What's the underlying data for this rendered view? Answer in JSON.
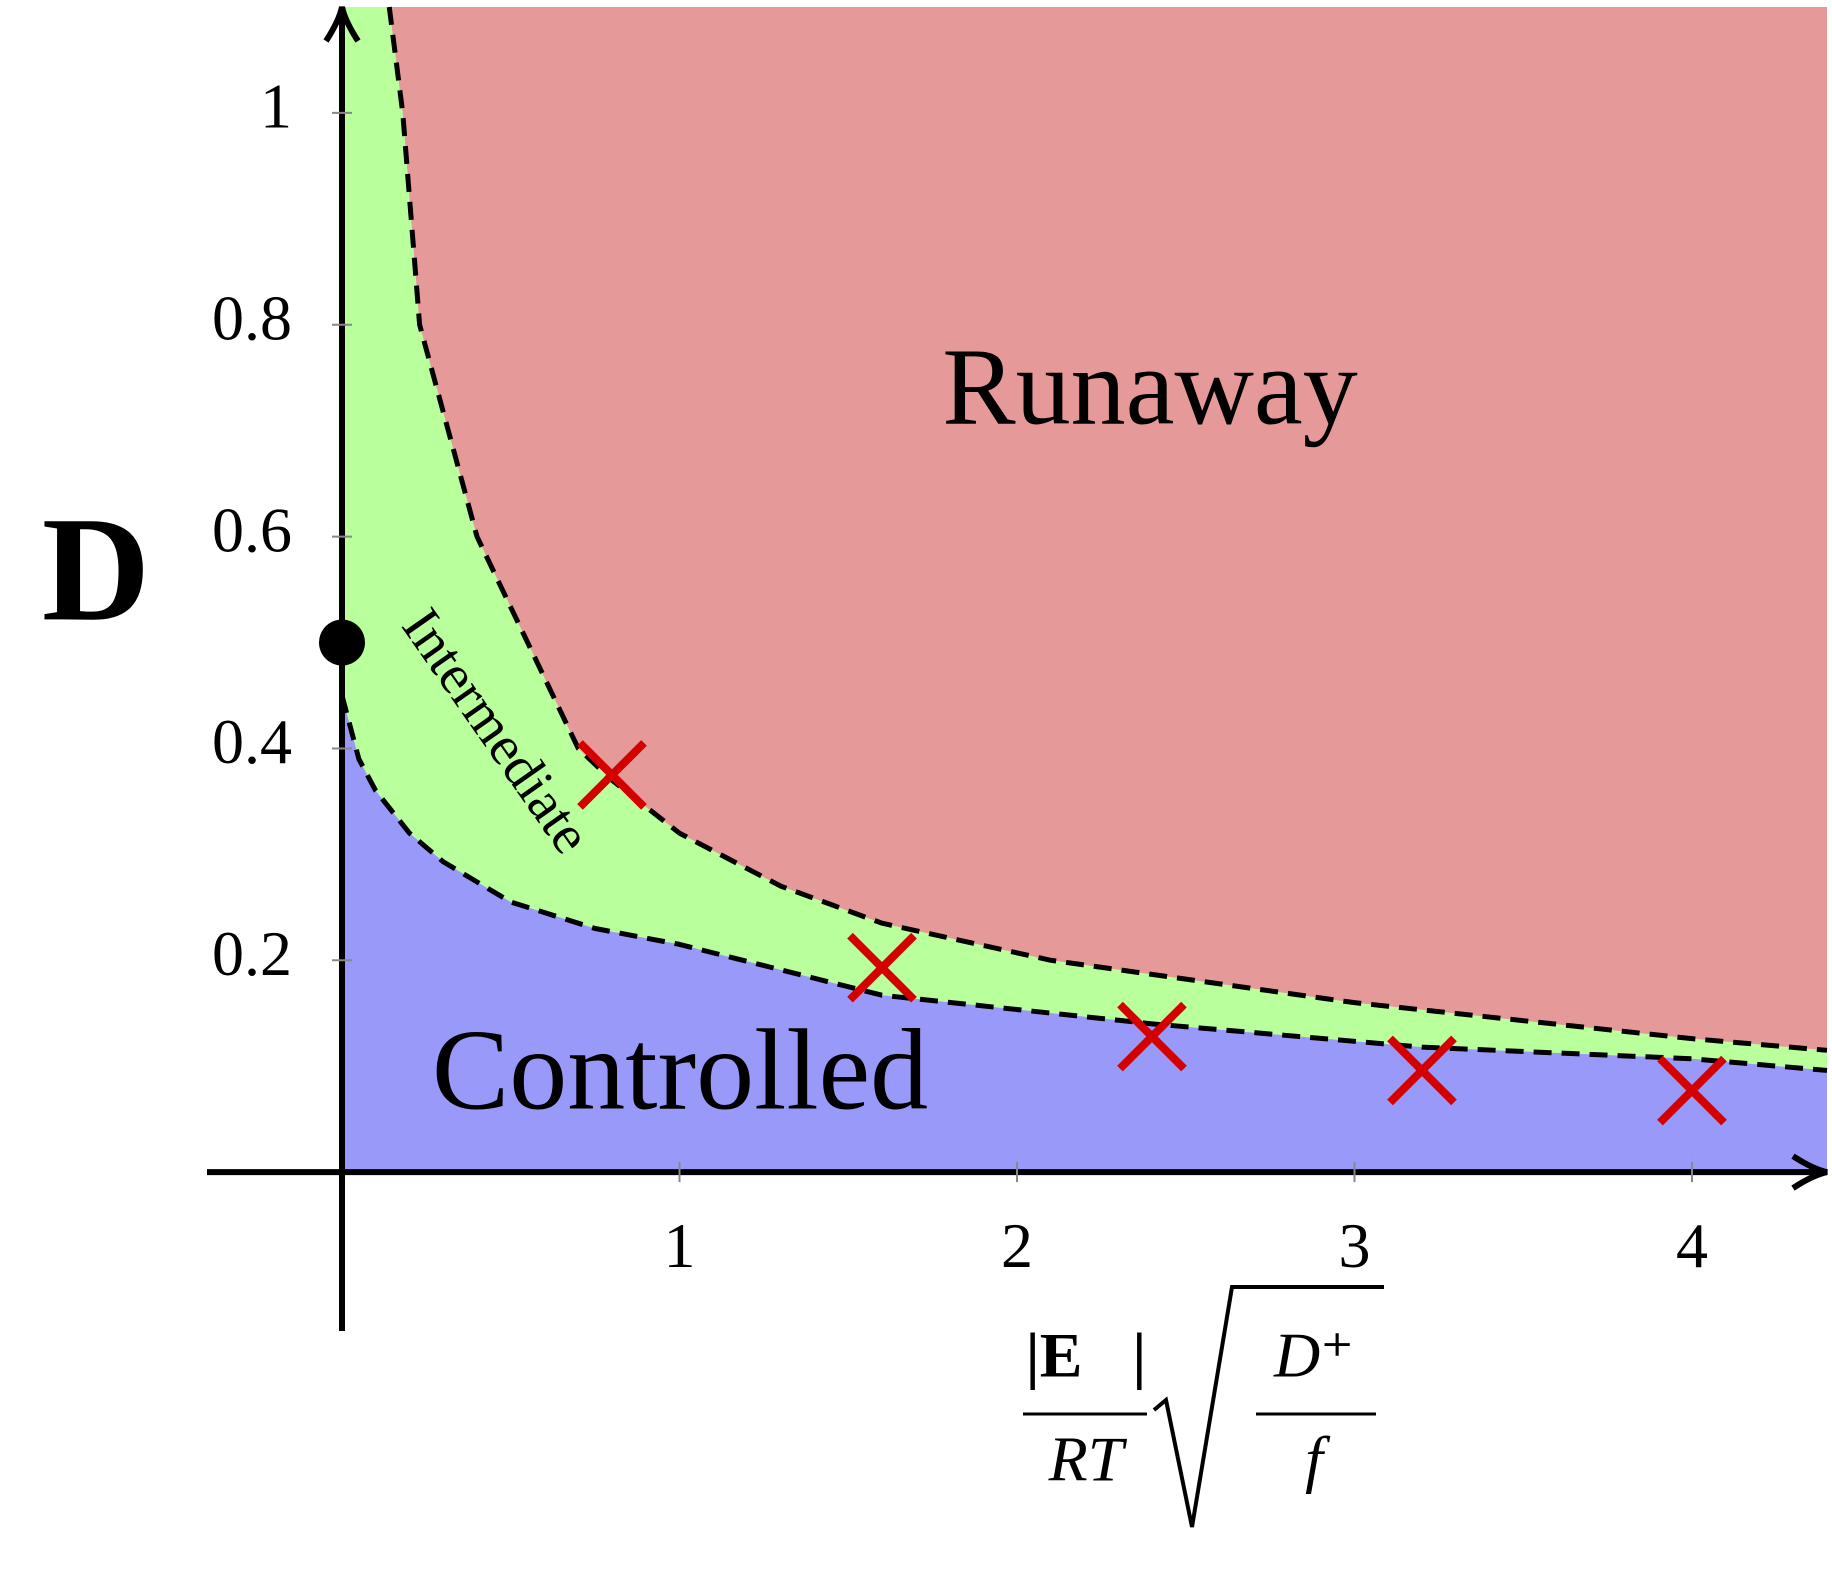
{
  "chart_data": {
    "type": "phase",
    "y_label": "D",
    "x_label": {
      "numerator": "|E⃗|",
      "denominator": "RT",
      "root_numerator": "D⁺",
      "root_denominator": "f"
    },
    "xlim": [
      -0.4,
      4.4
    ],
    "ylim": [
      -0.15,
      1.1
    ],
    "xticks": [
      1,
      2,
      3,
      4
    ],
    "yticks": [
      0.2,
      0.4,
      0.6,
      0.8,
      1
    ],
    "regions": [
      {
        "name": "Runaway",
        "color": "#e69999"
      },
      {
        "name": "Intermediate",
        "color": "#b9ff9b"
      },
      {
        "name": "Controlled",
        "color": "#9999fa"
      }
    ],
    "boundaries": [
      {
        "x": [
          0.14,
          0.18,
          0.23,
          0.4,
          0.7,
          0.8,
          1.0,
          1.3,
          1.6,
          2.1,
          3.0,
          4.0,
          4.4
        ],
        "y": [
          1.1,
          1.0,
          0.8,
          0.6,
          0.4,
          0.37,
          0.32,
          0.27,
          0.235,
          0.2,
          0.16,
          0.126,
          0.115
        ]
      },
      {
        "x": [
          0,
          0.05,
          0.1,
          0.2,
          0.3,
          0.5,
          0.75,
          1.0,
          1.6,
          2.4,
          3.2,
          4.0,
          4.4
        ],
        "y": [
          0.45,
          0.39,
          0.36,
          0.32,
          0.293,
          0.255,
          0.23,
          0.215,
          0.167,
          0.14,
          0.118,
          0.107,
          0.096
        ]
      }
    ],
    "points": {
      "x": [
        0.8,
        1.6,
        2.4,
        3.2,
        4.0
      ],
      "y": [
        0.375,
        0.193,
        0.128,
        0.096,
        0.077
      ],
      "color": "#d40000"
    },
    "marked_point": {
      "x": 0,
      "y": 0.5
    }
  }
}
